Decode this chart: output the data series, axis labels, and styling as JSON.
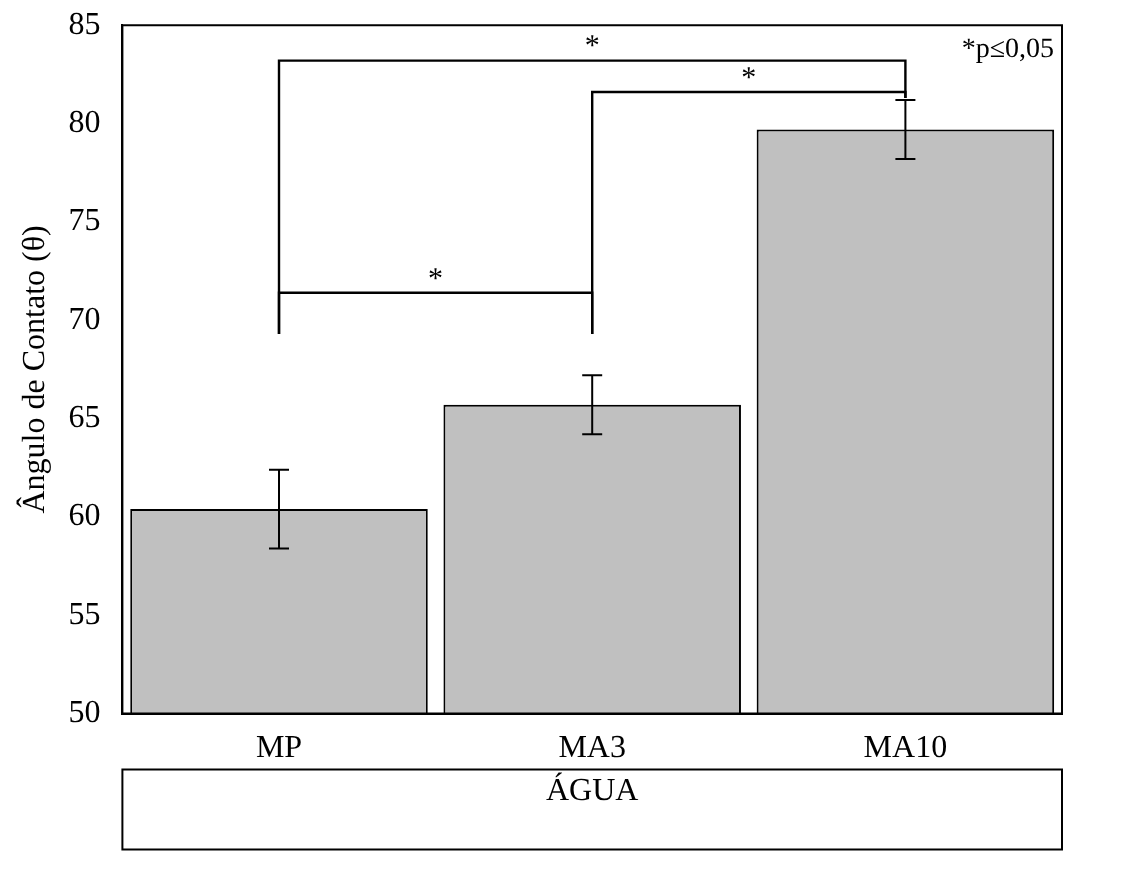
{
  "chart_data": {
    "type": "bar",
    "categories": [
      "MP",
      "MA3",
      "MA10"
    ],
    "values": [
      60.4,
      65.7,
      79.7
    ],
    "errors": [
      2.0,
      1.5,
      1.5
    ],
    "color": "#c0c0c0",
    "ylabel": "Ângulo de Contato (θ)",
    "xlabel": "ÁGUA",
    "ylim": [
      50,
      85
    ],
    "yticks": [
      50,
      55,
      60,
      65,
      70,
      75,
      80,
      85
    ],
    "grid": false,
    "legend": false,
    "annotations": [
      "*",
      "*",
      "*",
      "*p≤0,05"
    ]
  }
}
